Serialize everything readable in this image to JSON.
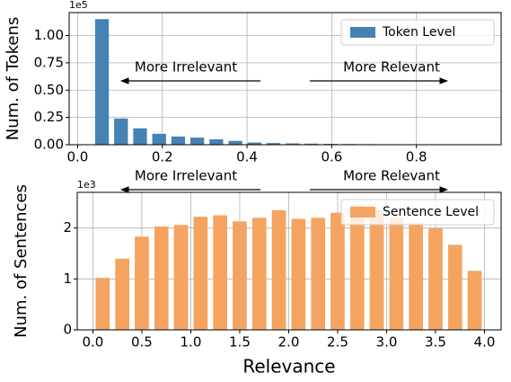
{
  "chart_data": [
    {
      "type": "histogram",
      "ylabel": "Num. of Tokens",
      "y_offset_label": "1e5",
      "bins": [
        0.035,
        0.08,
        0.125,
        0.17,
        0.215,
        0.26,
        0.305,
        0.35,
        0.395,
        0.44,
        0.485,
        0.53,
        0.575,
        0.62,
        0.665,
        0.71,
        0.755,
        0.8,
        0.845,
        0.89,
        0.935
      ],
      "series": [
        {
          "name": "Token Level",
          "color": "#4682b4",
          "values": [
            1.15,
            0.24,
            0.15,
            0.1,
            0.075,
            0.065,
            0.05,
            0.035,
            0.02,
            0.015,
            0.012,
            0.01,
            0.008,
            0.006,
            0.005,
            0.004,
            0.003,
            0.003,
            0.002,
            0.002
          ]
        }
      ],
      "xlim": [
        -0.02,
        1.0
      ],
      "xticks": [
        {
          "value": 0,
          "label": "0.0"
        },
        0.2,
        0.4,
        0.6,
        0.8
      ],
      "ylim": [
        0,
        1.21
      ],
      "yticks": [
        {
          "value": 0,
          "label": "0.00"
        },
        0.25,
        {
          "value": 0.5,
          "label": "0.50"
        },
        0.75,
        {
          "value": 1,
          "label": "1.00"
        }
      ],
      "grid": true,
      "legend": "upper right",
      "annotations": [
        {
          "text": "More Irrelevant",
          "direction": "left"
        },
        {
          "text": "More Relevant",
          "direction": "right"
        }
      ]
    },
    {
      "type": "histogram",
      "ylabel": "Num. of Sentences",
      "xlabel": "Relevance",
      "y_offset_label": "1e3",
      "bins": [
        0,
        0.2,
        0.4,
        0.6,
        0.8,
        1.0,
        1.2,
        1.4,
        1.6,
        1.8,
        2.0,
        2.2,
        2.4,
        2.6,
        2.8,
        3.0,
        3.2,
        3.4,
        3.6,
        3.8,
        4.0
      ],
      "series": [
        {
          "name": "Sentence Level",
          "color": "#f4a460",
          "values": [
            1.02,
            1.4,
            1.83,
            2.03,
            2.06,
            2.22,
            2.25,
            2.13,
            2.2,
            2.35,
            2.18,
            2.2,
            2.3,
            2.45,
            2.35,
            2.2,
            2.1,
            2.0,
            1.67,
            1.16
          ]
        }
      ],
      "xlim": [
        -0.16,
        4.17
      ],
      "xticks": [
        {
          "value": 0,
          "label": "0.0"
        },
        0.5,
        {
          "value": 1,
          "label": "1.0"
        },
        1.5,
        {
          "value": 2,
          "label": "2.0"
        },
        2.5,
        {
          "value": 3,
          "label": "3.0"
        },
        3.5,
        {
          "value": 4,
          "label": "4.0"
        }
      ],
      "ylim": [
        0,
        2.7
      ],
      "yticks": [
        0,
        1,
        2
      ],
      "grid": true,
      "legend": "upper right",
      "annotations": [
        {
          "text": "More Irrelevant",
          "direction": "left"
        },
        {
          "text": "More Relevant",
          "direction": "right"
        }
      ]
    }
  ]
}
